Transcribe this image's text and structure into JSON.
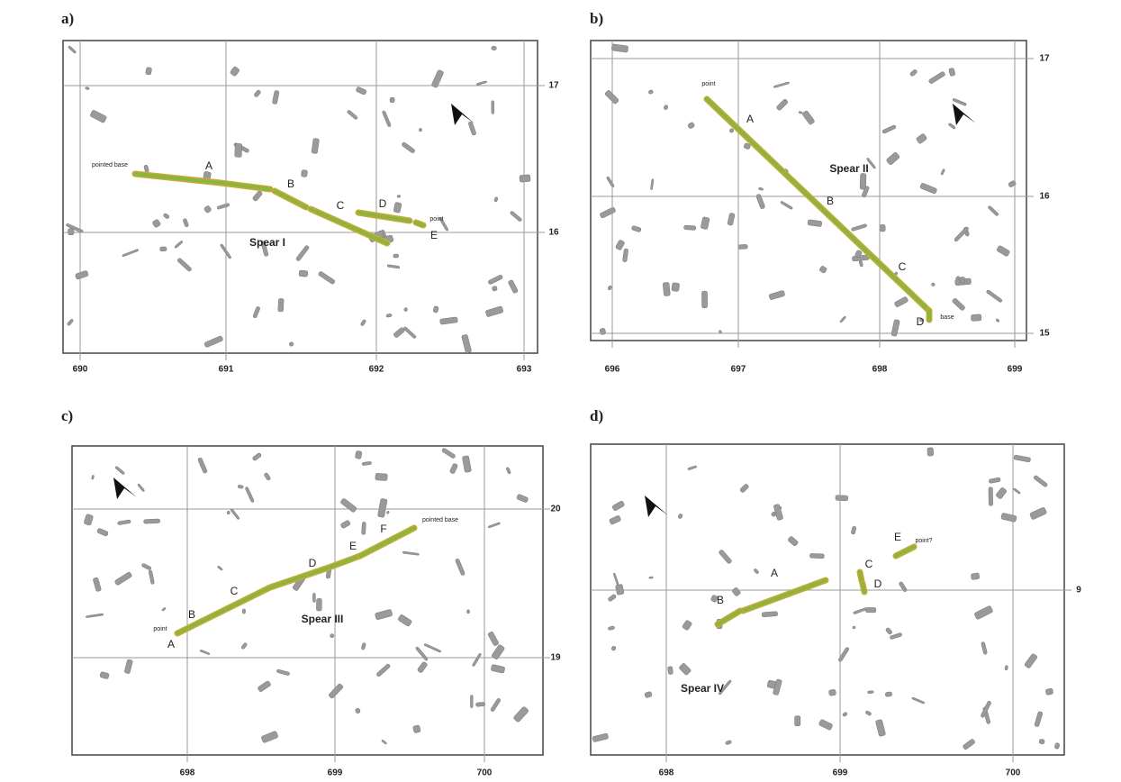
{
  "panels": [
    {
      "label": "a)",
      "name": "Spear I",
      "x_ticks": [
        "690",
        "691",
        "692",
        "693"
      ],
      "y_ticks": [
        "17",
        "16"
      ],
      "annotations": [
        "pointed base",
        "A",
        "B",
        "C",
        "D",
        "E",
        "point"
      ]
    },
    {
      "label": "b)",
      "name": "Spear II",
      "x_ticks": [
        "696",
        "697",
        "698",
        "699"
      ],
      "y_ticks": [
        "17",
        "16",
        "15"
      ],
      "annotations": [
        "point",
        "A",
        "B",
        "C",
        "D",
        "base"
      ]
    },
    {
      "label": "c)",
      "name": "Spear III",
      "x_ticks": [
        "698",
        "699",
        "700"
      ],
      "y_ticks": [
        "20",
        "19"
      ],
      "annotations": [
        "point",
        "A",
        "B",
        "C",
        "D",
        "E",
        "F",
        "pointed base"
      ]
    },
    {
      "label": "d)",
      "name": "Spear IV",
      "x_ticks": [
        "698",
        "699",
        "700"
      ],
      "y_ticks": [
        "9"
      ],
      "annotations": [
        "A",
        "B",
        "C",
        "D",
        "E",
        "point?"
      ]
    }
  ]
}
